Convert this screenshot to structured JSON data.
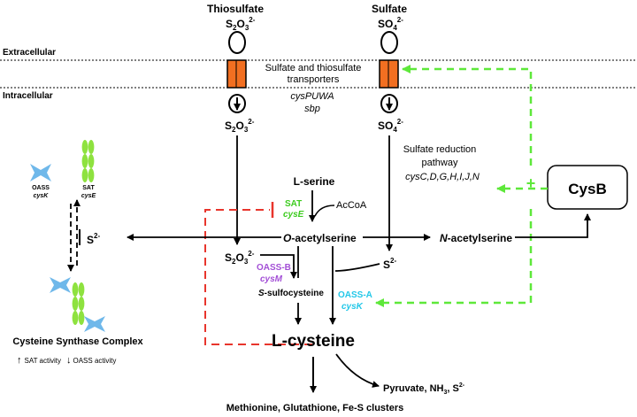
{
  "regions": {
    "extracellular": "Extracellular",
    "intracellular": "Intracellular"
  },
  "sources": {
    "thiosulfate_name": "Thiosulfate",
    "sulfate_name": "Sulfate",
    "thiosulfate_base": "S",
    "thiosulfate_sub1": "2",
    "thiosulfate_o": "O",
    "thiosulfate_sub2": "3",
    "thiosulfate_charge": "2-",
    "sulfate_base": "SO",
    "sulfate_sub": "4",
    "sulfate_charge": "2-"
  },
  "transporter": {
    "line1": "Sulfate and thiosulfate",
    "line2": "transporters",
    "genes1": "cysPUWA",
    "genes2": "sbp"
  },
  "reduction": {
    "line1": "Sulfate reduction",
    "line2": "pathway",
    "genes": "cysC,D,G,H,I,J,N"
  },
  "regulator": {
    "name": "CysB",
    "plus": "+"
  },
  "metabolites": {
    "l_serine": "L-serine",
    "acetyl_coa": "AcCoA",
    "o_prefix": "O",
    "o_suffix": "-acetylserine",
    "n_prefix": "N",
    "n_suffix": "-acetylserine",
    "sulfide_base": "S",
    "sulfide_charge": "2-",
    "s_prefix": "S",
    "s_suffix": "-sulfocysteine",
    "l_cysteine": "L-cysteine",
    "products_main": "Methionine, Glutathione, Fe-S clusters",
    "products_side_a": "Pyruvate, NH",
    "products_side_sub": "3",
    "products_side_b": ", S",
    "products_side_charge": "2-"
  },
  "enzymes": {
    "sat_name": "SAT",
    "sat_gene": "cysE",
    "oassb_name": "OASS-B",
    "oassb_gene": "cysM",
    "oassa_name": "OASS-A",
    "oassa_gene": "cysK"
  },
  "complex": {
    "oass_name": "OASS",
    "oass_gene": "cysK",
    "sat_name": "SAT",
    "sat_gene": "cysE",
    "title": "Cysteine Synthase Complex",
    "arrow_up": "↑",
    "sat_activity": "SAT activity",
    "arrow_down": "↓",
    "oass_activity": "OASS activity"
  },
  "colors": {
    "transporter_fill": "#f26f21",
    "sat_green": "#3dcc1f",
    "oassb_purple": "#a34fd6",
    "oassa_cyan": "#22c7e8",
    "regulation_green": "#5ee83a",
    "feedback_red": "#e8352c",
    "protein_green": "#8ee23f",
    "protein_blue": "#6fb8ea"
  }
}
